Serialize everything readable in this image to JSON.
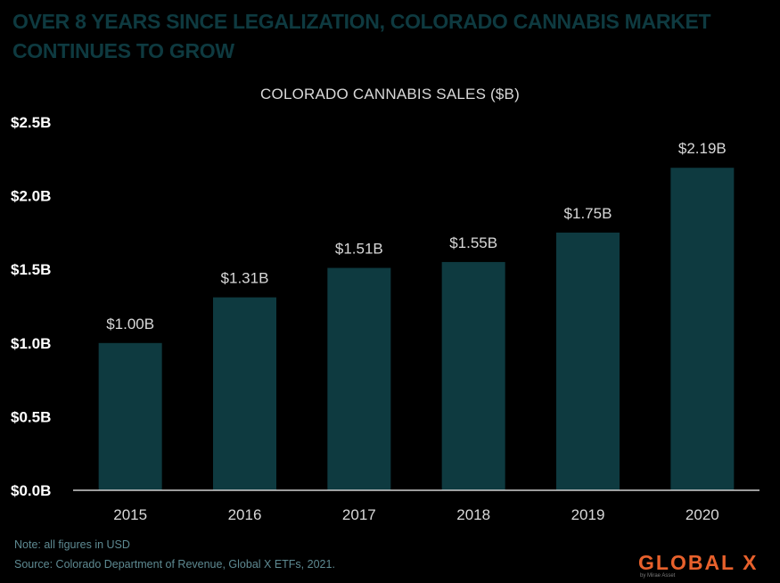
{
  "headline": "OVER 8 YEARS SINCE LEGALIZATION, COLORADO CANNABIS MARKET CONTINUES TO  GROW",
  "chart_data": {
    "type": "bar",
    "title": "COLORADO CANNABIS SALES ($B)",
    "categories": [
      "2015",
      "2016",
      "2017",
      "2018",
      "2019",
      "2020"
    ],
    "values": [
      1.0,
      1.31,
      1.51,
      1.55,
      1.75,
      2.19
    ],
    "data_labels": [
      "$1.00B",
      "$1.31B",
      "$1.51B",
      "$1.55B",
      "$1.75B",
      "$2.19B"
    ],
    "y_ticks": [
      0,
      0.5,
      1.0,
      1.5,
      2.0,
      2.5
    ],
    "y_tick_labels": [
      "$0.0B",
      "$0.5B",
      "$1.0B",
      "$1.5B",
      "$2.0B",
      "$2.5B"
    ],
    "ylim": [
      0,
      2.5
    ],
    "grid": false,
    "bar_color": "#0e3a40",
    "xlabel": "",
    "ylabel": ""
  },
  "footnotes": {
    "note": "Note: all figures in USD",
    "source": "Source: Colorado Department of Revenue, Global X ETFs, 2021."
  },
  "logo": {
    "text": "GLOBAL X",
    "subtext": "by Mirae Asset",
    "color": "#e8612c"
  }
}
